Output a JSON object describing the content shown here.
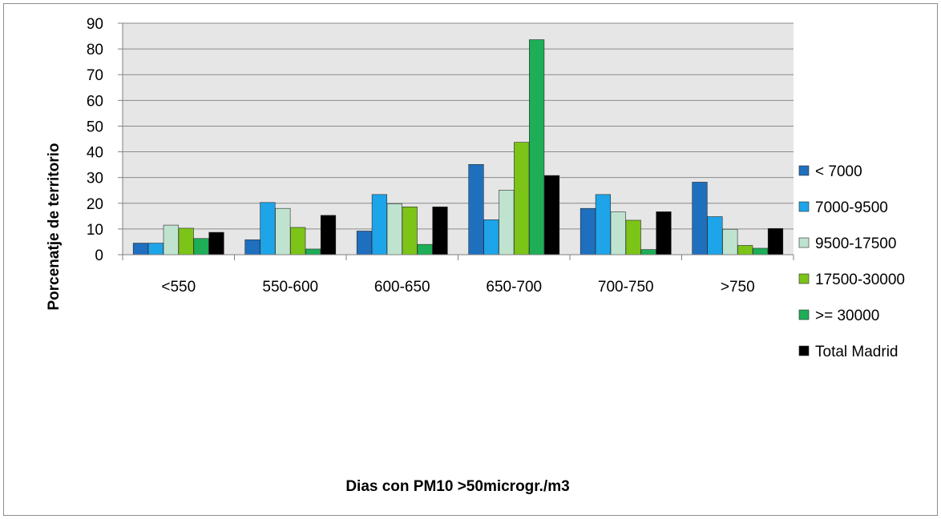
{
  "chart_data": {
    "type": "bar",
    "title": "",
    "xlabel": "Dias con PM10 >50microgr./m3",
    "ylabel": "Porcenatje de territorio",
    "ylim": [
      0,
      90
    ],
    "yticks": [
      0,
      10,
      20,
      30,
      40,
      50,
      60,
      70,
      80,
      90
    ],
    "grid": true,
    "legend_position": "right",
    "categories": [
      "<550",
      "550-600",
      "600-650",
      "650-700",
      "700-750",
      ">750"
    ],
    "series": [
      {
        "name": "< 7000",
        "color": "#1f6fbf",
        "values": [
          4.5,
          5.8,
          9.2,
          35.1,
          18.0,
          28.2
        ]
      },
      {
        "name": "7000-9500",
        "color": "#1ea4e8",
        "values": [
          4.5,
          20.3,
          23.4,
          13.6,
          23.4,
          14.8
        ]
      },
      {
        "name": "9500-17500",
        "color": "#bfe3cf",
        "values": [
          11.5,
          18.0,
          19.8,
          25.1,
          16.6,
          9.9
        ]
      },
      {
        "name": "17500-30000",
        "color": "#7cc418",
        "values": [
          10.3,
          10.6,
          18.6,
          43.7,
          13.4,
          3.6
        ]
      },
      {
        "name": ">= 30000",
        "color": "#1dae57",
        "values": [
          6.3,
          2.2,
          4.0,
          83.6,
          2.0,
          2.5
        ]
      },
      {
        "name": "Total Madrid",
        "color": "#000000",
        "values": [
          8.7,
          15.3,
          18.6,
          30.8,
          16.7,
          10.2
        ]
      }
    ]
  }
}
